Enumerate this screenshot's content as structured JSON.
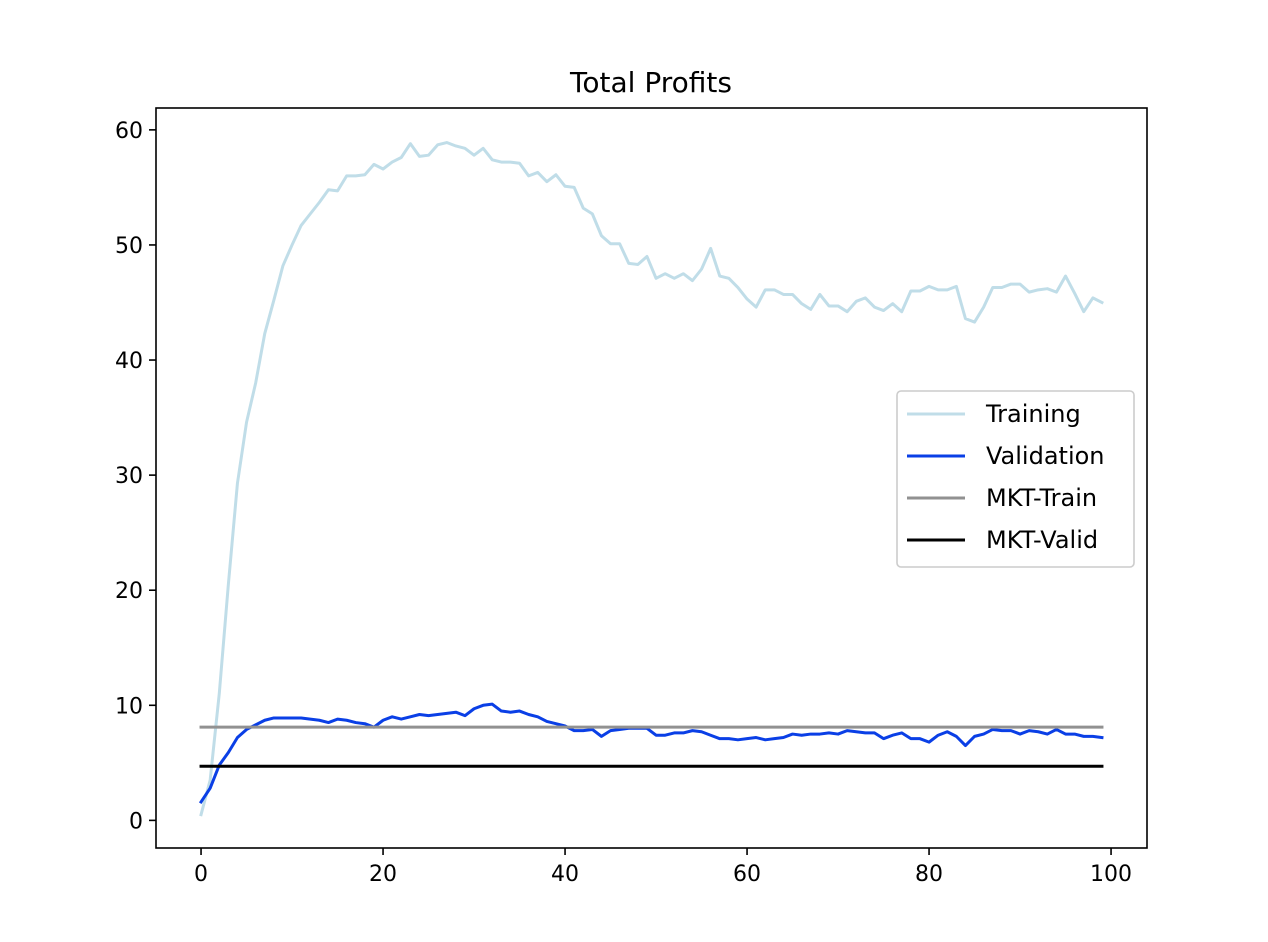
{
  "chart_data": {
    "type": "line",
    "title": "Total Profits",
    "xlabel": "",
    "ylabel": "",
    "xlim": [
      -4.95,
      103.95
    ],
    "ylim": [
      -2.4,
      61.9
    ],
    "xticks": [
      0,
      20,
      40,
      60,
      80,
      100
    ],
    "yticks": [
      0,
      10,
      20,
      30,
      40,
      50,
      60
    ],
    "grid": false,
    "legend_position": "center-right",
    "series": [
      {
        "name": "Training",
        "color": "#c0dde8",
        "values": [
          0.5,
          3.5,
          11.0,
          20.5,
          29.3,
          34.6,
          38.0,
          42.3,
          45.2,
          48.2,
          50.0,
          51.7,
          52.7,
          53.7,
          54.8,
          54.7,
          56.0,
          56.0,
          56.1,
          57.0,
          56.6,
          57.2,
          57.6,
          58.8,
          57.7,
          57.8,
          58.7,
          58.9,
          58.6,
          58.4,
          57.8,
          58.4,
          57.4,
          57.2,
          57.2,
          57.1,
          56.0,
          56.3,
          55.5,
          56.1,
          55.1,
          55.0,
          53.2,
          52.7,
          50.8,
          50.1,
          50.1,
          48.4,
          48.3,
          49.0,
          47.1,
          47.5,
          47.1,
          47.5,
          46.9,
          47.9,
          49.7,
          47.3,
          47.1,
          46.3,
          45.3,
          44.6,
          46.1,
          46.1,
          45.7,
          45.7,
          44.9,
          44.4,
          45.7,
          44.7,
          44.7,
          44.2,
          45.1,
          45.4,
          44.6,
          44.3,
          44.9,
          44.2,
          46.0,
          46.0,
          46.4,
          46.1,
          46.1,
          46.4,
          43.6,
          43.3,
          44.6,
          46.3,
          46.3,
          46.6,
          46.6,
          45.9,
          46.1,
          46.2,
          45.9,
          47.3,
          45.8,
          44.2,
          45.4,
          45.0
        ]
      },
      {
        "name": "Validation",
        "color": "#0a3fe6",
        "values": [
          1.6,
          2.8,
          4.8,
          5.9,
          7.2,
          7.9,
          8.3,
          8.7,
          8.9,
          8.9,
          8.9,
          8.9,
          8.8,
          8.7,
          8.5,
          8.8,
          8.7,
          8.5,
          8.4,
          8.1,
          8.7,
          9.0,
          8.8,
          9.0,
          9.2,
          9.1,
          9.2,
          9.3,
          9.4,
          9.1,
          9.7,
          10.0,
          10.1,
          9.5,
          9.4,
          9.5,
          9.2,
          9.0,
          8.6,
          8.4,
          8.2,
          7.8,
          7.8,
          7.9,
          7.3,
          7.8,
          7.9,
          8.0,
          8.0,
          8.0,
          7.4,
          7.4,
          7.6,
          7.6,
          7.8,
          7.7,
          7.4,
          7.1,
          7.1,
          7.0,
          7.1,
          7.2,
          7.0,
          7.1,
          7.2,
          7.5,
          7.4,
          7.5,
          7.5,
          7.6,
          7.5,
          7.8,
          7.7,
          7.6,
          7.6,
          7.1,
          7.4,
          7.6,
          7.1,
          7.1,
          6.8,
          7.4,
          7.7,
          7.3,
          6.5,
          7.3,
          7.5,
          7.9,
          7.8,
          7.8,
          7.5,
          7.8,
          7.7,
          7.5,
          7.9,
          7.5,
          7.5,
          7.3,
          7.3,
          7.2
        ]
      },
      {
        "name": "MKT-Train",
        "color": "#919191",
        "constant": 8.1,
        "x_range": [
          0,
          99
        ]
      },
      {
        "name": "MKT-Valid",
        "color": "#000000",
        "constant": 4.7,
        "x_range": [
          0,
          99
        ]
      }
    ]
  }
}
